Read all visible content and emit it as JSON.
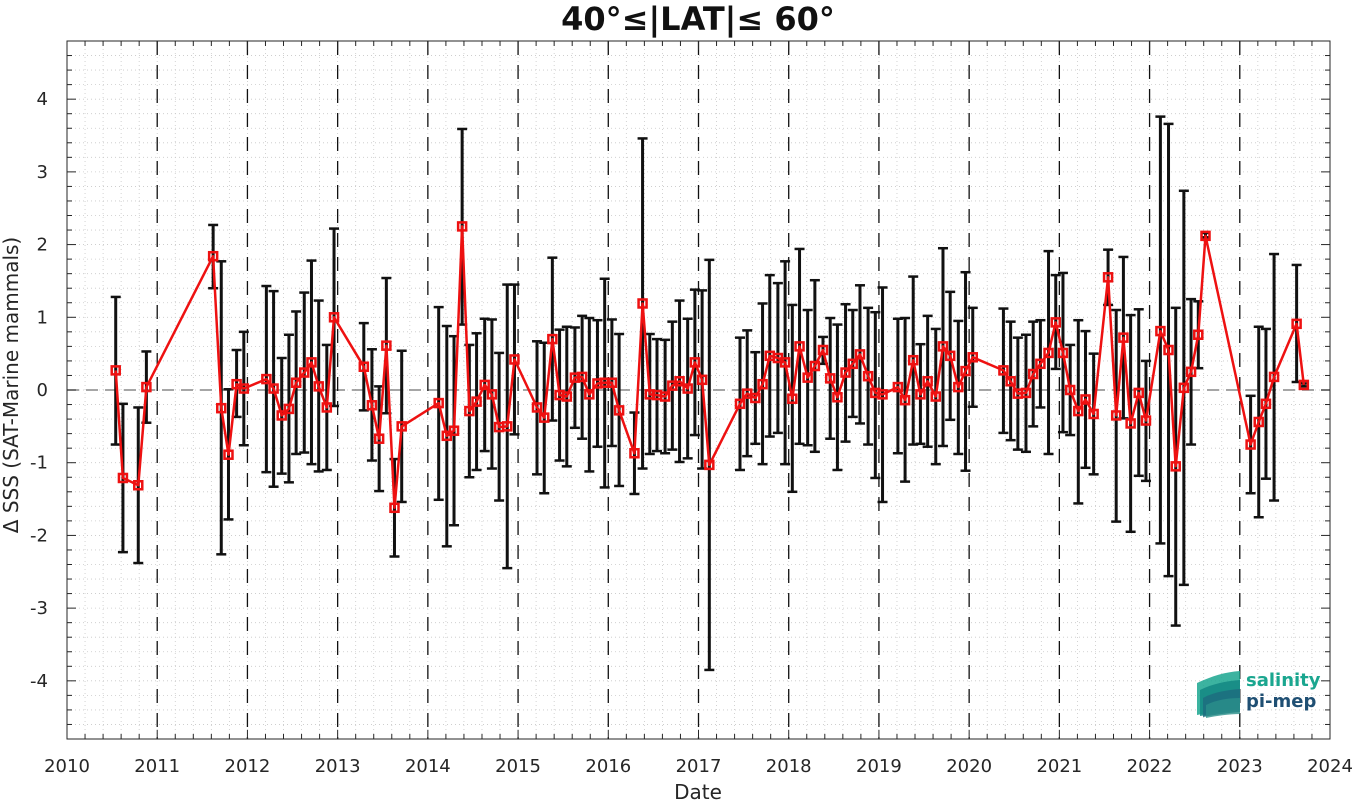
{
  "chart_data": {
    "type": "line",
    "title": "40°≤|LAT|≤ 60°",
    "xlabel": "Date",
    "ylabel": "Δ SSS (SAT-Marine mammals)",
    "xlim": [
      2010,
      2024
    ],
    "ylim": [
      -4.8,
      4.8
    ],
    "x_ticks": [
      "2010",
      "2011",
      "2012",
      "2013",
      "2014",
      "2015",
      "2016",
      "2017",
      "2018",
      "2019",
      "2020",
      "2021",
      "2022",
      "2023",
      "2024"
    ],
    "y_ticks": [
      "-4",
      "-3",
      "-2",
      "-1",
      "0",
      "1",
      "2",
      "3",
      "4"
    ],
    "grid": "minor-dotted",
    "zero_line": 0,
    "year_dividers": [
      2011,
      2012,
      2013,
      2014,
      2015,
      2016,
      2017,
      2018,
      2019,
      2020,
      2021,
      2022,
      2023
    ],
    "colors": {
      "series": "#ee1111",
      "errorbar": "#111111",
      "zero_line": "#888888"
    },
    "series": [
      {
        "marker": "square",
        "points": [
          {
            "x": 2010.54,
            "y": 0.27,
            "lo": -0.75,
            "hi": 1.28
          },
          {
            "x": 2010.62,
            "y": -1.21,
            "lo": -2.23,
            "hi": -0.19
          },
          {
            "x": 2010.79,
            "y": -1.31,
            "lo": -2.38,
            "hi": -0.24
          },
          {
            "x": 2010.88,
            "y": 0.04,
            "lo": -0.45,
            "hi": 0.53
          },
          {
            "x": 2011.62,
            "y": 1.84,
            "lo": 1.4,
            "hi": 2.27
          },
          {
            "x": 2011.71,
            "y": -0.25,
            "lo": -2.26,
            "hi": 1.77
          },
          {
            "x": 2011.79,
            "y": -0.89,
            "lo": -1.78,
            "hi": 0.01
          },
          {
            "x": 2011.88,
            "y": 0.08,
            "lo": -0.37,
            "hi": 0.55
          },
          {
            "x": 2011.96,
            "y": 0.02,
            "lo": -0.76,
            "hi": 0.8
          },
          {
            "x": 2012.21,
            "y": 0.15,
            "lo": -1.13,
            "hi": 1.43
          },
          {
            "x": 2012.29,
            "y": 0.02,
            "lo": -1.33,
            "hi": 1.36
          },
          {
            "x": 2012.38,
            "y": -0.35,
            "lo": -1.15,
            "hi": 0.44
          },
          {
            "x": 2012.46,
            "y": -0.26,
            "lo": -1.27,
            "hi": 0.76
          },
          {
            "x": 2012.54,
            "y": 0.1,
            "lo": -0.88,
            "hi": 1.08
          },
          {
            "x": 2012.63,
            "y": 0.24,
            "lo": -0.86,
            "hi": 1.34
          },
          {
            "x": 2012.71,
            "y": 0.38,
            "lo": -1.02,
            "hi": 1.78
          },
          {
            "x": 2012.79,
            "y": 0.05,
            "lo": -1.12,
            "hi": 1.23
          },
          {
            "x": 2012.88,
            "y": -0.24,
            "lo": -1.1,
            "hi": 0.62
          },
          {
            "x": 2012.96,
            "y": 1.0,
            "lo": -0.22,
            "hi": 2.22
          },
          {
            "x": 2013.29,
            "y": 0.32,
            "lo": -0.28,
            "hi": 0.92
          },
          {
            "x": 2013.38,
            "y": -0.21,
            "lo": -0.97,
            "hi": 0.56
          },
          {
            "x": 2013.46,
            "y": -0.67,
            "lo": -1.39,
            "hi": 0.05
          },
          {
            "x": 2013.54,
            "y": 0.61,
            "lo": -0.32,
            "hi": 1.54
          },
          {
            "x": 2013.63,
            "y": -1.62,
            "lo": -2.29,
            "hi": -0.95
          },
          {
            "x": 2013.71,
            "y": -0.5,
            "lo": -1.54,
            "hi": 0.54
          },
          {
            "x": 2014.12,
            "y": -0.18,
            "lo": -1.51,
            "hi": 1.14
          },
          {
            "x": 2014.21,
            "y": -0.63,
            "lo": -2.15,
            "hi": 0.88
          },
          {
            "x": 2014.29,
            "y": -0.56,
            "lo": -1.86,
            "hi": 0.74
          },
          {
            "x": 2014.38,
            "y": 2.25,
            "lo": 0.9,
            "hi": 3.59
          },
          {
            "x": 2014.46,
            "y": -0.29,
            "lo": -1.2,
            "hi": 0.62
          },
          {
            "x": 2014.54,
            "y": -0.16,
            "lo": -1.1,
            "hi": 0.78
          },
          {
            "x": 2014.63,
            "y": 0.07,
            "lo": -0.84,
            "hi": 0.98
          },
          {
            "x": 2014.71,
            "y": -0.06,
            "lo": -1.08,
            "hi": 0.97
          },
          {
            "x": 2014.79,
            "y": -0.51,
            "lo": -1.52,
            "hi": 0.51
          },
          {
            "x": 2014.88,
            "y": -0.5,
            "lo": -2.45,
            "hi": 1.45
          },
          {
            "x": 2014.96,
            "y": 0.42,
            "lo": -0.61,
            "hi": 1.45
          },
          {
            "x": 2015.21,
            "y": -0.24,
            "lo": -1.16,
            "hi": 0.67
          },
          {
            "x": 2015.29,
            "y": -0.38,
            "lo": -1.42,
            "hi": 0.65
          },
          {
            "x": 2015.38,
            "y": 0.7,
            "lo": -0.42,
            "hi": 1.82
          },
          {
            "x": 2015.46,
            "y": -0.07,
            "lo": -0.97,
            "hi": 0.83
          },
          {
            "x": 2015.54,
            "y": -0.09,
            "lo": -1.05,
            "hi": 0.87
          },
          {
            "x": 2015.63,
            "y": 0.17,
            "lo": -0.52,
            "hi": 0.86
          },
          {
            "x": 2015.71,
            "y": 0.18,
            "lo": -0.67,
            "hi": 1.02
          },
          {
            "x": 2015.79,
            "y": -0.06,
            "lo": -1.12,
            "hi": 0.99
          },
          {
            "x": 2015.88,
            "y": 0.09,
            "lo": -0.78,
            "hi": 0.96
          },
          {
            "x": 2015.96,
            "y": 0.1,
            "lo": -1.34,
            "hi": 1.53
          },
          {
            "x": 2016.04,
            "y": 0.1,
            "lo": -0.77,
            "hi": 0.97
          },
          {
            "x": 2016.12,
            "y": -0.28,
            "lo": -1.32,
            "hi": 0.77
          },
          {
            "x": 2016.29,
            "y": -0.87,
            "lo": -1.43,
            "hi": -0.31
          },
          {
            "x": 2016.38,
            "y": 1.19,
            "lo": -1.08,
            "hi": 3.46
          },
          {
            "x": 2016.46,
            "y": -0.06,
            "lo": -0.88,
            "hi": 0.77
          },
          {
            "x": 2016.54,
            "y": -0.07,
            "lo": -0.84,
            "hi": 0.7
          },
          {
            "x": 2016.63,
            "y": -0.09,
            "lo": -0.87,
            "hi": 0.69
          },
          {
            "x": 2016.71,
            "y": 0.06,
            "lo": -0.82,
            "hi": 0.94
          },
          {
            "x": 2016.79,
            "y": 0.12,
            "lo": -0.99,
            "hi": 1.23
          },
          {
            "x": 2016.88,
            "y": 0.02,
            "lo": -0.94,
            "hi": 0.98
          },
          {
            "x": 2016.96,
            "y": 0.38,
            "lo": -0.62,
            "hi": 1.38
          },
          {
            "x": 2017.04,
            "y": 0.14,
            "lo": -1.08,
            "hi": 1.37
          },
          {
            "x": 2017.12,
            "y": -1.03,
            "lo": -3.85,
            "hi": 1.79
          },
          {
            "x": 2017.46,
            "y": -0.19,
            "lo": -1.1,
            "hi": 0.72
          },
          {
            "x": 2017.54,
            "y": -0.05,
            "lo": -0.91,
            "hi": 0.82
          },
          {
            "x": 2017.63,
            "y": -0.11,
            "lo": -0.74,
            "hi": 0.52
          },
          {
            "x": 2017.71,
            "y": 0.08,
            "lo": -1.02,
            "hi": 1.19
          },
          {
            "x": 2017.79,
            "y": 0.47,
            "lo": -0.64,
            "hi": 1.58
          },
          {
            "x": 2017.88,
            "y": 0.44,
            "lo": -0.59,
            "hi": 1.47
          },
          {
            "x": 2017.96,
            "y": 0.38,
            "lo": -1.02,
            "hi": 1.77
          },
          {
            "x": 2018.04,
            "y": -0.12,
            "lo": -1.4,
            "hi": 1.17
          },
          {
            "x": 2018.12,
            "y": 0.6,
            "lo": -0.74,
            "hi": 1.94
          },
          {
            "x": 2018.21,
            "y": 0.17,
            "lo": -0.76,
            "hi": 1.1
          },
          {
            "x": 2018.29,
            "y": 0.33,
            "lo": -0.85,
            "hi": 1.51
          },
          {
            "x": 2018.38,
            "y": 0.55,
            "lo": 0.36,
            "hi": 0.73
          },
          {
            "x": 2018.46,
            "y": 0.16,
            "lo": -0.67,
            "hi": 0.99
          },
          {
            "x": 2018.54,
            "y": -0.1,
            "lo": -1.1,
            "hi": 0.9
          },
          {
            "x": 2018.63,
            "y": 0.24,
            "lo": -0.71,
            "hi": 1.18
          },
          {
            "x": 2018.71,
            "y": 0.36,
            "lo": -0.37,
            "hi": 1.1
          },
          {
            "x": 2018.79,
            "y": 0.49,
            "lo": -0.46,
            "hi": 1.44
          },
          {
            "x": 2018.88,
            "y": 0.19,
            "lo": -0.75,
            "hi": 1.13
          },
          {
            "x": 2018.96,
            "y": -0.04,
            "lo": -1.21,
            "hi": 1.07
          },
          {
            "x": 2019.04,
            "y": -0.06,
            "lo": -1.54,
            "hi": 1.41
          },
          {
            "x": 2019.21,
            "y": 0.04,
            "lo": -0.87,
            "hi": 0.98
          },
          {
            "x": 2019.29,
            "y": -0.14,
            "lo": -1.26,
            "hi": 0.99
          },
          {
            "x": 2019.38,
            "y": 0.41,
            "lo": -0.75,
            "hi": 1.56
          },
          {
            "x": 2019.46,
            "y": -0.06,
            "lo": -0.74,
            "hi": 0.63
          },
          {
            "x": 2019.54,
            "y": 0.12,
            "lo": -0.78,
            "hi": 1.02
          },
          {
            "x": 2019.63,
            "y": -0.09,
            "lo": -1.02,
            "hi": 0.84
          },
          {
            "x": 2019.71,
            "y": 0.6,
            "lo": -0.77,
            "hi": 1.95
          },
          {
            "x": 2019.79,
            "y": 0.47,
            "lo": -0.41,
            "hi": 1.35
          },
          {
            "x": 2019.88,
            "y": 0.04,
            "lo": -0.88,
            "hi": 0.95
          },
          {
            "x": 2019.96,
            "y": 0.26,
            "lo": -1.11,
            "hi": 1.62
          },
          {
            "x": 2020.04,
            "y": 0.45,
            "lo": -0.23,
            "hi": 1.13
          },
          {
            "x": 2020.38,
            "y": 0.27,
            "lo": -0.59,
            "hi": 1.12
          },
          {
            "x": 2020.46,
            "y": 0.12,
            "lo": -0.69,
            "hi": 0.94
          },
          {
            "x": 2020.54,
            "y": -0.05,
            "lo": -0.82,
            "hi": 0.72
          },
          {
            "x": 2020.63,
            "y": -0.04,
            "lo": -0.85,
            "hi": 0.76
          },
          {
            "x": 2020.71,
            "y": 0.22,
            "lo": -0.5,
            "hi": 0.94
          },
          {
            "x": 2020.79,
            "y": 0.36,
            "lo": -0.24,
            "hi": 0.96
          },
          {
            "x": 2020.88,
            "y": 0.51,
            "lo": -0.88,
            "hi": 1.91
          },
          {
            "x": 2020.96,
            "y": 0.93,
            "lo": 0.29,
            "hi": 1.58
          },
          {
            "x": 2021.04,
            "y": 0.51,
            "lo": -0.58,
            "hi": 1.61
          },
          {
            "x": 2021.12,
            "y": 0.0,
            "lo": -0.62,
            "hi": 0.62
          },
          {
            "x": 2021.21,
            "y": -0.29,
            "lo": -1.56,
            "hi": 0.96
          },
          {
            "x": 2021.29,
            "y": -0.13,
            "lo": -1.07,
            "hi": 0.81
          },
          {
            "x": 2021.38,
            "y": -0.33,
            "lo": -1.16,
            "hi": 0.5
          },
          {
            "x": 2021.54,
            "y": 1.55,
            "lo": 1.17,
            "hi": 1.93
          },
          {
            "x": 2021.63,
            "y": -0.35,
            "lo": -1.81,
            "hi": 1.1
          },
          {
            "x": 2021.71,
            "y": 0.72,
            "lo": -0.39,
            "hi": 1.83
          },
          {
            "x": 2021.79,
            "y": -0.46,
            "lo": -1.95,
            "hi": 1.03
          },
          {
            "x": 2021.88,
            "y": -0.04,
            "lo": -1.18,
            "hi": 1.11
          },
          {
            "x": 2021.96,
            "y": -0.42,
            "lo": -1.25,
            "hi": 0.4
          },
          {
            "x": 2022.12,
            "y": 0.81,
            "lo": -2.11,
            "hi": 3.76
          },
          {
            "x": 2022.21,
            "y": 0.55,
            "lo": -2.56,
            "hi": 3.66
          },
          {
            "x": 2022.29,
            "y": -1.05,
            "lo": -3.24,
            "hi": 1.13
          },
          {
            "x": 2022.38,
            "y": 0.03,
            "lo": -2.68,
            "hi": 2.74
          },
          {
            "x": 2022.46,
            "y": 0.25,
            "lo": -0.75,
            "hi": 1.25
          },
          {
            "x": 2022.54,
            "y": 0.76,
            "lo": 0.3,
            "hi": 1.22
          },
          {
            "x": 2022.62,
            "y": 2.12,
            "lo": 2.1,
            "hi": 2.16
          },
          {
            "x": 2023.12,
            "y": -0.75,
            "lo": -1.42,
            "hi": -0.08
          },
          {
            "x": 2023.21,
            "y": -0.44,
            "lo": -1.75,
            "hi": 0.87
          },
          {
            "x": 2023.29,
            "y": -0.19,
            "lo": -1.22,
            "hi": 0.84
          },
          {
            "x": 2023.38,
            "y": 0.18,
            "lo": -1.52,
            "hi": 1.87
          },
          {
            "x": 2023.63,
            "y": 0.91,
            "lo": 0.11,
            "hi": 1.72
          },
          {
            "x": 2023.71,
            "y": 0.07,
            "lo": 0.05,
            "hi": 0.09
          }
        ]
      }
    ]
  },
  "logo": {
    "line1": "salinity",
    "line2": "pi-mep",
    "color1": "#1aa68f",
    "color2": "#1f4f73"
  }
}
